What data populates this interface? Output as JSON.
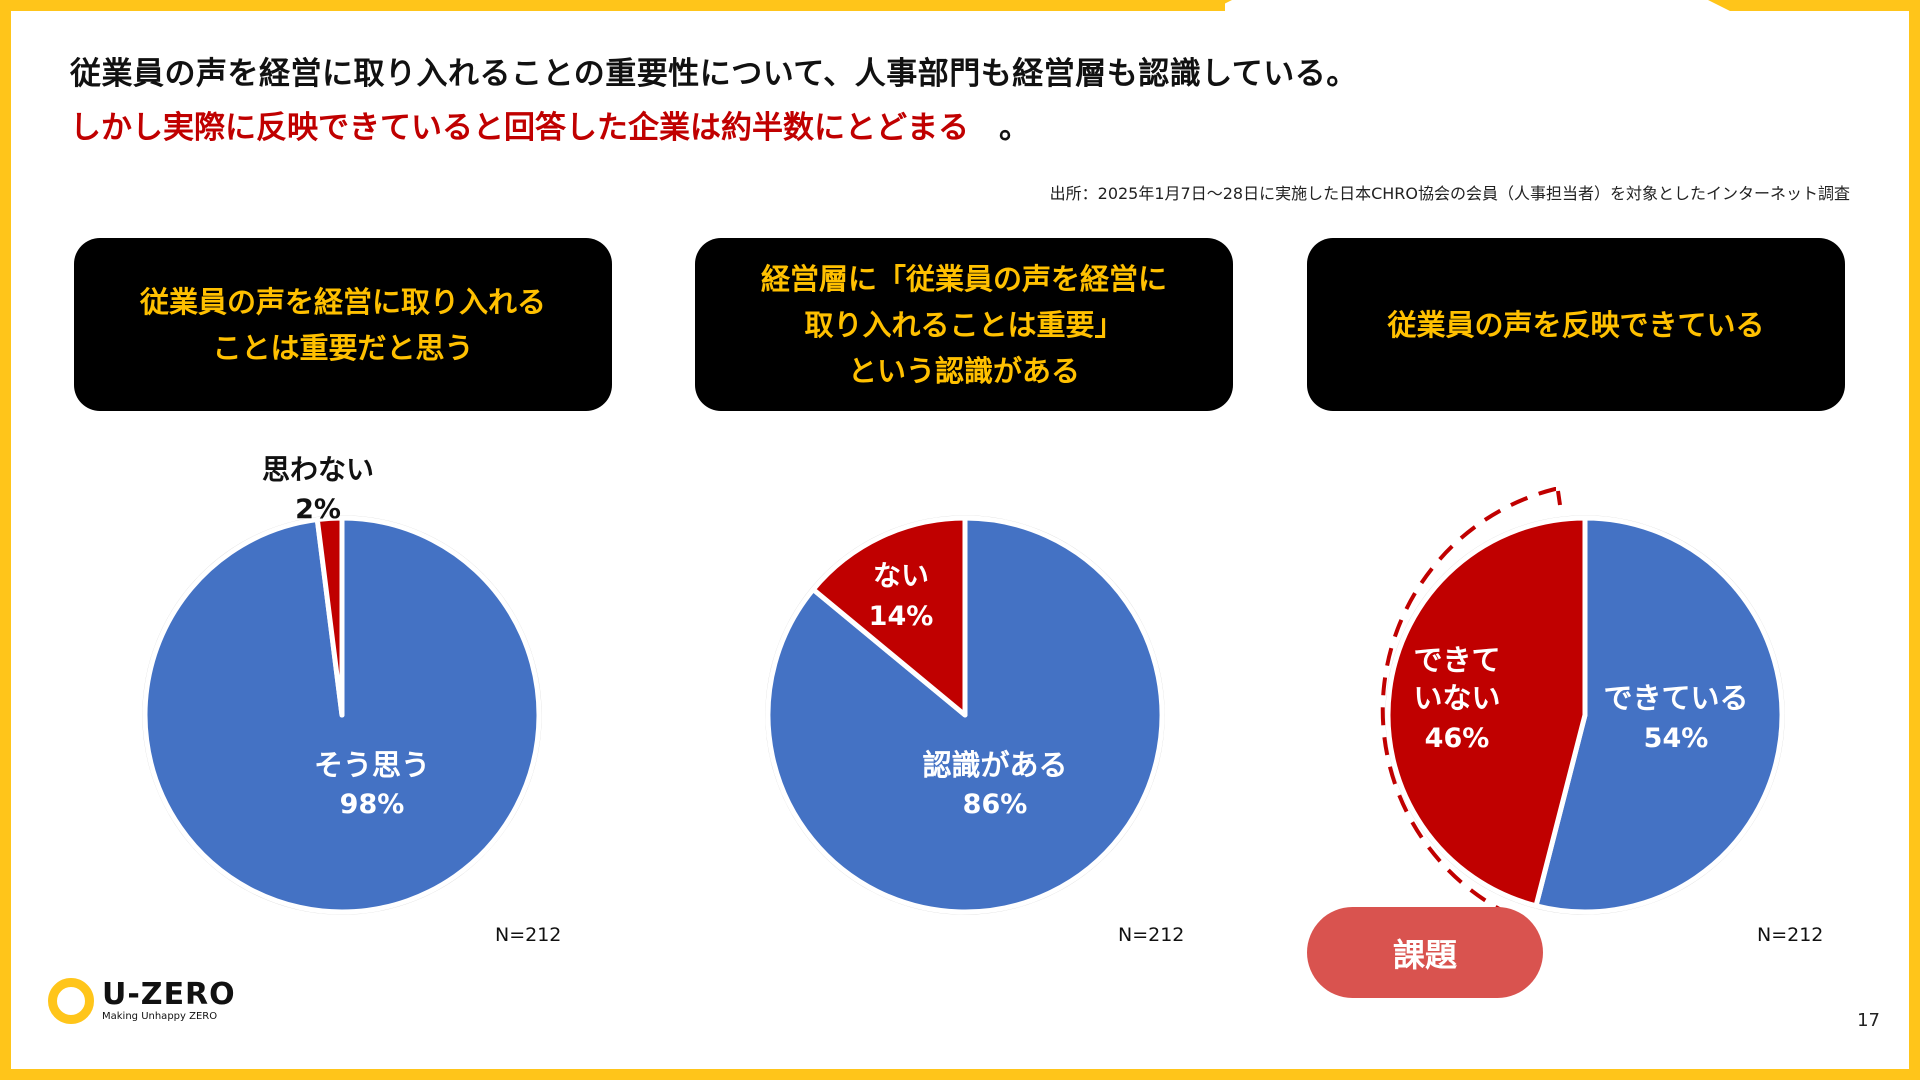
{
  "header": {
    "title": "従業員の声を経営に取り入れることの重要性について、人事部門も経営層も認識している。",
    "subtitle": "しかし実際に反映できていると回答した企業は約半数にとどまる",
    "subtitle_end": "。",
    "source": "出所：2025年1月7日～28日に実施した日本CHRO協会の会員（人事担当者）を対象としたインターネット調査"
  },
  "colors": {
    "blue": "#4472C4",
    "red": "#C00000",
    "frame": "#FFC51A",
    "box_text": "#FFC000",
    "badge": "#D9534F"
  },
  "chart_data": [
    {
      "type": "pie",
      "title_lines": [
        "従業員の声を経営に取り入れる",
        "ことは重要だと思う"
      ],
      "slices": [
        {
          "label": "そう思う",
          "value": 98,
          "value_label": "98%",
          "color": "#4472C4"
        },
        {
          "label": "思わない",
          "value": 2,
          "value_label": "2%",
          "color": "#C00000"
        }
      ],
      "n_label": "N=212"
    },
    {
      "type": "pie",
      "title_lines": [
        "経営層に「従業員の声を経営に",
        "取り入れることは重要」",
        "という認識がある"
      ],
      "slices": [
        {
          "label": "認識がある",
          "value": 86,
          "value_label": "86%",
          "color": "#4472C4"
        },
        {
          "label": "ない",
          "value": 14,
          "value_label": "14%",
          "color": "#C00000"
        }
      ],
      "n_label": "N=212"
    },
    {
      "type": "pie",
      "title_lines": [
        "従業員の声を反映できている"
      ],
      "slices": [
        {
          "label": "できている",
          "value": 54,
          "value_label": "54%",
          "color": "#4472C4"
        },
        {
          "label_lines": [
            "できて",
            "いない"
          ],
          "value": 46,
          "value_label": "46%",
          "color": "#C00000"
        }
      ],
      "n_label": "N=212",
      "callout": "課題"
    }
  ],
  "logo": {
    "name": "U-ZERO",
    "tagline": "Making Unhappy ZERO"
  },
  "page_number": "17"
}
